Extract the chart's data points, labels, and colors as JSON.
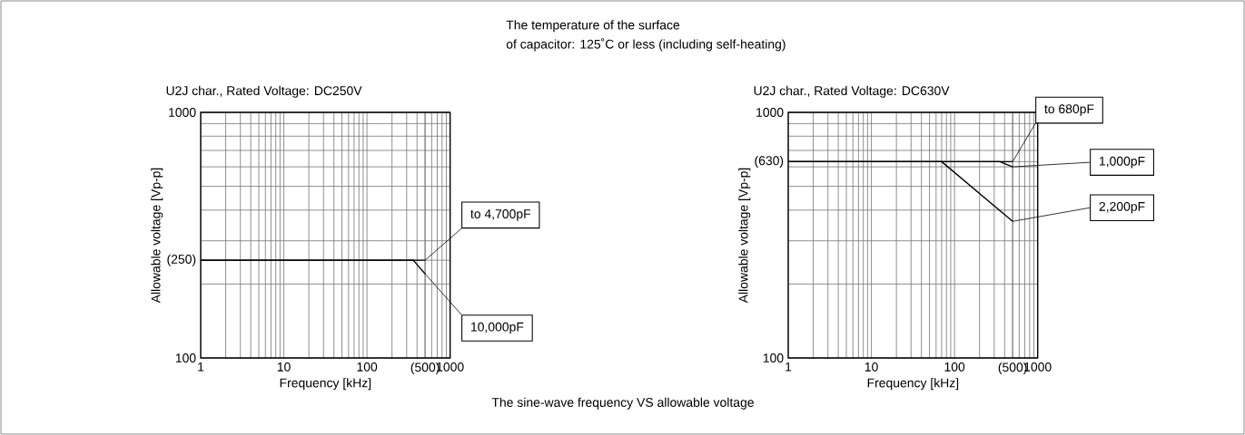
{
  "chart_data": [
    {
      "type": "line",
      "title": "U2J char., Rated Voltage: DC250V",
      "xlabel": "Frequency [kHz]",
      "ylabel": "Allowable voltage [Vp-p]",
      "log": "xy",
      "grid": true,
      "marker": "none",
      "annotations": [
        "The temperature of the surface",
        "of capacitor: 125˚C or less (including self-heating)",
        "The sine-wave frequency VS allowable voltage"
      ],
      "xlim": [
        1,
        1000
      ],
      "ylim": [
        100,
        1000
      ],
      "xticks": [
        1,
        10,
        100,
        {
          "value": 500,
          "label": "(500)"
        },
        1000
      ],
      "yticks": [
        100,
        {
          "value": 250,
          "label": "(250)"
        },
        1000
      ],
      "series": [
        {
          "name": "to 4,700pF",
          "color": "#000000",
          "x": [
            1,
            500
          ],
          "values": [
            250,
            250
          ]
        },
        {
          "name": "10,000pF",
          "color": "#000000",
          "x": [
            1,
            360,
            500
          ],
          "values": [
            250,
            250,
            220
          ]
        }
      ]
    },
    {
      "type": "line",
      "title": "U2J char., Rated Voltage: DC630V",
      "xlabel": "Frequency [kHz]",
      "ylabel": "Allowable voltage [Vp-p]",
      "log": "xy",
      "grid": true,
      "marker": "none",
      "xlim": [
        1,
        1000
      ],
      "ylim": [
        100,
        1000
      ],
      "xticks": [
        1,
        10,
        100,
        {
          "value": 500,
          "label": "(500)"
        },
        1000
      ],
      "yticks": [
        100,
        {
          "value": 630,
          "label": "(630)"
        },
        1000
      ],
      "series": [
        {
          "name": "to 680pF",
          "color": "#000000",
          "x": [
            1,
            500
          ],
          "values": [
            630,
            630
          ]
        },
        {
          "name": "1,000pF",
          "color": "#000000",
          "x": [
            1,
            350,
            500
          ],
          "values": [
            630,
            630,
            600
          ]
        },
        {
          "name": "2,200pF",
          "color": "#000000",
          "x": [
            1,
            70,
            500
          ],
          "values": [
            630,
            630,
            360
          ]
        }
      ]
    }
  ]
}
